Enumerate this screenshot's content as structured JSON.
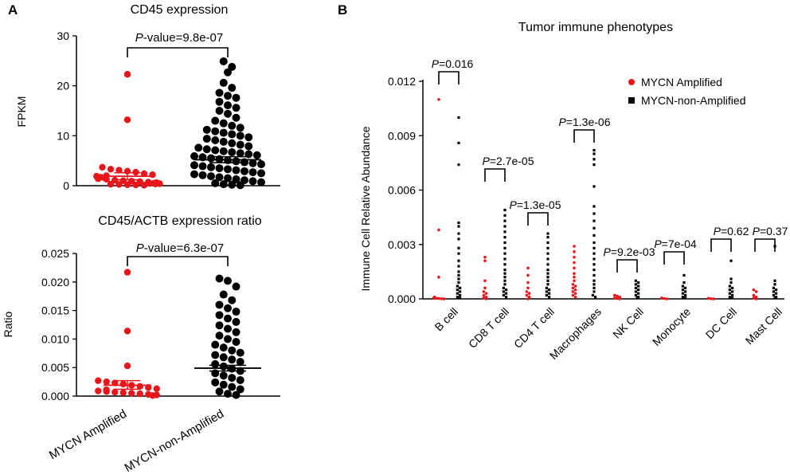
{
  "colors": {
    "amplified": "#e8161b",
    "non_amplified": "#000000"
  },
  "chart_data": [
    {
      "panel": "A",
      "type": "scatter",
      "title": "CD45 expression",
      "ylabel": "FPKM",
      "ylim": [
        0,
        30
      ],
      "yticks": [
        "0",
        "10",
        "20",
        "30"
      ],
      "pvalue_italic": "P",
      "pvalue_rest": "-value=9.8e-07",
      "series": [
        {
          "name": "MYCN Amplified",
          "mean": 1.9,
          "sem_low": 1.2,
          "sem_high": 2.6,
          "values": [
            22.3,
            13.2,
            3.7,
            3.3,
            3.1,
            2.9,
            2.7,
            2.4,
            2.2,
            2.0,
            1.9,
            1.7,
            1.5,
            1.4,
            1.3,
            1.1,
            1.0,
            0.9,
            0.8,
            0.7,
            0.6,
            0.5,
            0.45,
            0.4,
            0.35,
            0.3,
            0.25,
            0.2,
            0.15,
            0.1
          ]
        },
        {
          "name": "MYCN-non-Amplified",
          "mean": 5.2,
          "sem_low": 4.6,
          "sem_high": 5.8,
          "values": [
            24.9,
            23.8,
            22.7,
            20.6,
            19.6,
            18.6,
            18.0,
            17.6,
            16.8,
            16.1,
            15.6,
            15.0,
            14.4,
            13.6,
            13.0,
            12.5,
            12.0,
            11.6,
            11.2,
            10.9,
            10.6,
            10.3,
            10.0,
            9.7,
            9.4,
            9.1,
            8.8,
            8.5,
            8.2,
            7.9,
            7.6,
            7.3,
            7.1,
            6.9,
            6.7,
            6.5,
            6.3,
            6.1,
            5.9,
            5.7,
            5.5,
            5.3,
            5.1,
            4.9,
            4.7,
            4.5,
            4.3,
            4.1,
            3.9,
            3.7,
            3.5,
            3.3,
            3.1,
            2.9,
            2.7,
            2.5,
            2.3,
            2.1,
            1.9,
            1.7,
            1.5,
            1.3,
            1.1,
            0.9,
            0.7,
            0.5,
            0.3,
            0.2,
            0.1
          ]
        }
      ]
    },
    {
      "panel": "A",
      "type": "scatter",
      "title": "CD45/ACTB expression ratio",
      "ylabel": "Ratio",
      "ylim": [
        0,
        0.025
      ],
      "yticks": [
        "0.000",
        "0.005",
        "0.010",
        "0.015",
        "0.020",
        "0.025"
      ],
      "categories": [
        "MYCN Amplified",
        "MYCN-non-Amplified"
      ],
      "pvalue_italic": "P",
      "pvalue_rest": "-value=6.3e-07",
      "series": [
        {
          "name": "MYCN Amplified",
          "mean": 0.0019,
          "sem_low": 0.0012,
          "sem_high": 0.0027,
          "values": [
            0.0217,
            0.0114,
            0.0053,
            0.0027,
            0.0025,
            0.0023,
            0.0021,
            0.0019,
            0.0017,
            0.0015,
            0.0013,
            0.0011,
            0.0009,
            0.0008,
            0.0007,
            0.0006,
            0.0005,
            0.0004,
            0.0003,
            0.0002,
            0.0001
          ]
        },
        {
          "name": "MYCN-non-Amplified",
          "mean": 0.0049,
          "sem_low": 0.0044,
          "sem_high": 0.0054,
          "values": [
            0.0206,
            0.0202,
            0.0192,
            0.0178,
            0.0168,
            0.016,
            0.0154,
            0.0148,
            0.0142,
            0.0136,
            0.013,
            0.0124,
            0.0118,
            0.0112,
            0.0106,
            0.01,
            0.0095,
            0.009,
            0.0085,
            0.008,
            0.0076,
            0.0072,
            0.0068,
            0.0064,
            0.006,
            0.0056,
            0.0052,
            0.0048,
            0.0044,
            0.004,
            0.0036,
            0.0032,
            0.0028,
            0.0024,
            0.002,
            0.0016,
            0.0012,
            0.0008,
            0.0004,
            0.0002
          ]
        }
      ]
    },
    {
      "panel": "B",
      "type": "scatter",
      "title": "Tumor immune phenotypes",
      "ylabel": "Immune Cell Relative Abundance",
      "ylim": [
        0,
        0.012
      ],
      "yticks": [
        "0.000",
        "0.003",
        "0.006",
        "0.009",
        "0.012"
      ],
      "legend": [
        "MYCN Amplified",
        "MYCN-non-Amplified"
      ],
      "groups": [
        {
          "label": "B cell",
          "p": "=0.016",
          "amp": [
            0.011,
            0.0038,
            0.0012,
            0.0001,
            5e-05,
            3e-05,
            2e-05,
            1e-05,
            0,
            0
          ],
          "non": [
            0.01,
            0.0086,
            0.0074,
            0.0042,
            0.004,
            0.0036,
            0.0033,
            0.0028,
            0.0025,
            0.0021,
            0.0018,
            0.0015,
            0.0013,
            0.0011,
            0.0009,
            0.0007,
            0.0006,
            0.0005,
            0.0004,
            0.0003,
            0.0002,
            0.0001,
            5e-05
          ]
        },
        {
          "label": "CD8 T cell",
          "p": "=2.7e-05",
          "amp": [
            0.0023,
            0.0021,
            0.001,
            0.0006,
            0.0004,
            0.0003,
            0.0002,
            0.0001,
            5e-05,
            0
          ],
          "non": [
            0.0049,
            0.0046,
            0.0043,
            0.004,
            0.0037,
            0.0034,
            0.0031,
            0.0028,
            0.0025,
            0.0022,
            0.0019,
            0.0016,
            0.0014,
            0.0012,
            0.001,
            0.0008,
            0.0006,
            0.0005,
            0.0004,
            0.0003,
            0.0002,
            0.0001
          ]
        },
        {
          "label": "CD4 T cell",
          "p": "=1.3e-05",
          "amp": [
            0.0017,
            0.0013,
            0.0009,
            0.0006,
            0.0004,
            0.0003,
            0.0002,
            0.0001,
            0
          ],
          "non": [
            0.0036,
            0.0034,
            0.0031,
            0.0028,
            0.0025,
            0.0022,
            0.0019,
            0.0016,
            0.0014,
            0.0012,
            0.001,
            0.0008,
            0.0006,
            0.0005,
            0.0004,
            0.0003,
            0.0002,
            0.0001
          ]
        },
        {
          "label": "Macrophages",
          "p": "=1.3e-06",
          "amp": [
            0.0029,
            0.0026,
            0.0023,
            0.002,
            0.0017,
            0.0014,
            0.0012,
            0.001,
            0.0008,
            0.0007,
            0.0006,
            0.0005,
            0.0004,
            0.0003,
            0.0002,
            0.0001
          ],
          "non": [
            0.0082,
            0.008,
            0.0077,
            0.0074,
            0.0062,
            0.0051,
            0.0047,
            0.0043,
            0.0039,
            0.0035,
            0.0031,
            0.0028,
            0.0025,
            0.0022,
            0.0019,
            0.0016,
            0.0013,
            0.001,
            0.0008,
            0.0006,
            0.0004,
            0.0002,
            0.0001
          ]
        },
        {
          "label": "NK Cell",
          "p": "=9.2e-03",
          "amp": [
            0.0002,
            0.00015,
            0.0001,
            5e-05,
            2e-05,
            0
          ],
          "non": [
            0.001,
            0.0009,
            0.0008,
            0.0007,
            0.0006,
            0.0005,
            0.0004,
            0.0003,
            0.0002,
            0.0001,
            5e-05
          ]
        },
        {
          "label": "Monocyte",
          "p": "=7e-04",
          "amp": [
            5e-05,
            2e-05,
            0
          ],
          "non": [
            0.0013,
            0.0009,
            0.0007,
            0.0006,
            0.0005,
            0.0004,
            0.0003,
            0.0002,
            0.0001,
            5e-05
          ]
        },
        {
          "label": "DC Cell",
          "p": "=0.62",
          "amp": [
            3e-05,
            1e-05,
            0
          ],
          "non": [
            0.0021,
            0.0011,
            0.0009,
            0.0007,
            0.0006,
            0.0005,
            0.0004,
            0.0003,
            0.0002,
            0.0001,
            5e-05
          ]
        },
        {
          "label": "Mast Cell",
          "p": "=0.37",
          "amp": [
            0.0005,
            0.0004,
            0.0002,
            0.0001,
            5e-05,
            0
          ],
          "non": [
            0.0029,
            0.001,
            0.0008,
            0.0006,
            0.0005,
            0.0004,
            0.0003,
            0.0002,
            0.0001,
            5e-05
          ]
        }
      ]
    }
  ],
  "labels": {
    "panel_a": "A",
    "panel_b": "B",
    "p_symbol": "P",
    "x_amp": "MYCN Amplified",
    "x_non": "MYCN-non-Amplified"
  }
}
